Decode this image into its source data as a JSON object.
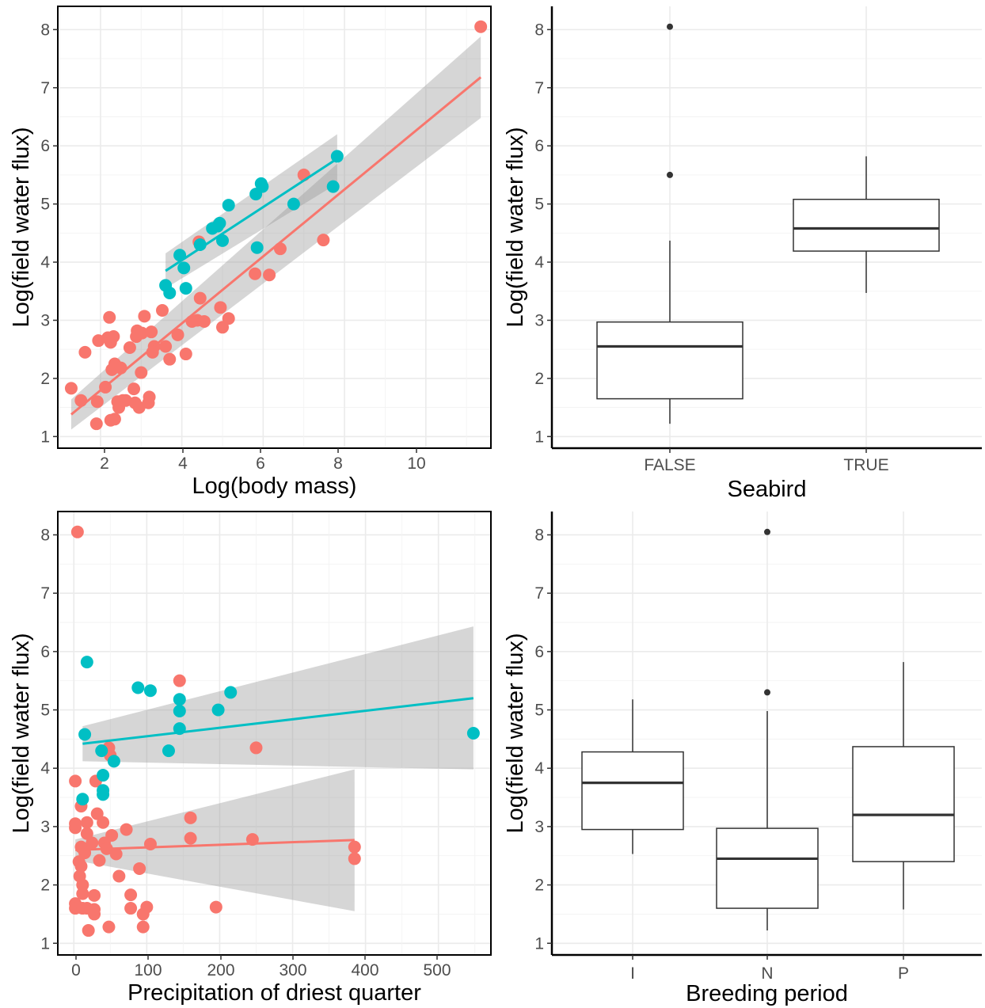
{
  "chart_data": [
    {
      "type": "scatter",
      "xlabel": "Log(body mass)",
      "ylabel": "Log(field water flux)",
      "xlim": [
        0.95,
        11.6
      ],
      "ylim": [
        0.8,
        8.4
      ],
      "xticks": [
        "2",
        "4",
        "6",
        "8",
        "10"
      ],
      "yticks": [
        "1",
        "2",
        "3",
        "4",
        "5",
        "6",
        "7",
        "8"
      ],
      "grid": true,
      "legend": "none",
      "series": [
        {
          "color": "#F8766D",
          "points": [
            [
              1.28,
              1.83
            ],
            [
              1.52,
              1.62
            ],
            [
              1.62,
              2.45
            ],
            [
              1.9,
              1.22
            ],
            [
              1.92,
              1.6
            ],
            [
              1.95,
              2.65
            ],
            [
              2.12,
              1.85
            ],
            [
              2.18,
              2.7
            ],
            [
              2.22,
              3.05
            ],
            [
              2.25,
              2.62
            ],
            [
              2.25,
              1.28
            ],
            [
              2.28,
              2.15
            ],
            [
              2.32,
              2.72
            ],
            [
              2.35,
              1.3
            ],
            [
              2.35,
              2.25
            ],
            [
              2.42,
              1.6
            ],
            [
              2.45,
              1.5
            ],
            [
              2.5,
              2.18
            ],
            [
              2.55,
              1.62
            ],
            [
              2.62,
              1.62
            ],
            [
              2.72,
              2.53
            ],
            [
              2.82,
              1.82
            ],
            [
              2.85,
              1.58
            ],
            [
              2.88,
              2.72
            ],
            [
              2.9,
              2.82
            ],
            [
              2.95,
              1.5
            ],
            [
              3.0,
              2.1
            ],
            [
              3.02,
              2.78
            ],
            [
              3.08,
              3.07
            ],
            [
              3.18,
              1.58
            ],
            [
              3.2,
              1.68
            ],
            [
              3.25,
              2.8
            ],
            [
              3.28,
              2.45
            ],
            [
              3.32,
              2.55
            ],
            [
              3.52,
              3.17
            ],
            [
              3.6,
              2.55
            ],
            [
              3.7,
              2.33
            ],
            [
              3.9,
              2.75
            ],
            [
              4.1,
              2.42
            ],
            [
              4.25,
              2.98
            ],
            [
              4.38,
              3.0
            ],
            [
              4.45,
              3.38
            ],
            [
              4.55,
              2.98
            ],
            [
              4.42,
              4.35
            ],
            [
              4.95,
              3.22
            ],
            [
              5.0,
              2.88
            ],
            [
              5.15,
              3.03
            ],
            [
              5.8,
              3.8
            ],
            [
              6.15,
              3.78
            ],
            [
              6.42,
              4.23
            ],
            [
              7.0,
              5.5
            ],
            [
              7.48,
              4.38
            ],
            [
              11.35,
              8.05
            ]
          ],
          "fit": {
            "x": [
              1.28,
              11.35
            ],
            "y": [
              1.38,
              7.18
            ],
            "ci_low": [
              1.12,
              6.48
            ],
            "ci_high": [
              1.64,
              7.88
            ]
          }
        },
        {
          "color": "#00BFC4",
          "points": [
            [
              3.6,
              3.6
            ],
            [
              3.7,
              3.47
            ],
            [
              3.95,
              4.12
            ],
            [
              4.05,
              3.9
            ],
            [
              4.1,
              3.55
            ],
            [
              4.45,
              4.3
            ],
            [
              4.75,
              4.58
            ],
            [
              4.88,
              4.62
            ],
            [
              4.93,
              4.67
            ],
            [
              5.0,
              4.37
            ],
            [
              5.15,
              4.98
            ],
            [
              5.82,
              5.17
            ],
            [
              5.85,
              4.25
            ],
            [
              5.95,
              5.35
            ],
            [
              5.98,
              5.3
            ],
            [
              6.75,
              5.0
            ],
            [
              7.72,
              5.3
            ],
            [
              7.82,
              5.82
            ]
          ],
          "fit": {
            "x": [
              3.6,
              7.82
            ],
            "y": [
              3.85,
              5.78
            ],
            "ci_low": [
              3.55,
              5.35
            ],
            "ci_high": [
              4.15,
              6.2
            ]
          }
        }
      ]
    },
    {
      "type": "box",
      "xlabel": "Seabird",
      "ylabel": "Log(field water flux)",
      "categories": [
        "FALSE",
        "TRUE"
      ],
      "ylim": [
        0.8,
        8.4
      ],
      "yticks": [
        "1",
        "2",
        "3",
        "4",
        "5",
        "6",
        "7",
        "8"
      ],
      "grid": true,
      "boxes": [
        {
          "min": 1.22,
          "q1": 1.65,
          "median": 2.55,
          "q3": 2.97,
          "max": 4.37,
          "outliers": [
            5.5,
            8.05
          ]
        },
        {
          "min": 3.47,
          "q1": 4.19,
          "median": 4.58,
          "q3": 5.08,
          "max": 5.82,
          "outliers": []
        }
      ]
    },
    {
      "type": "scatter",
      "xlabel": "Precipitation of driest quarter",
      "ylabel": "Log(field water flux)",
      "xlim": [
        -22,
        572
      ],
      "ylim": [
        0.8,
        8.4
      ],
      "xticks": [
        "0",
        "100",
        "200",
        "300",
        "400",
        "500"
      ],
      "yticks": [
        "1",
        "2",
        "3",
        "4",
        "5",
        "6",
        "7",
        "8"
      ],
      "grid": true,
      "legend": "none",
      "series": [
        {
          "color": "#F8766D",
          "points": [
            [
              2,
              3.78
            ],
            [
              2,
              3.05
            ],
            [
              2,
              2.98
            ],
            [
              2,
              1.68
            ],
            [
              2,
              1.6
            ],
            [
              5,
              8.05
            ],
            [
              7,
              2.4
            ],
            [
              8,
              2.15
            ],
            [
              10,
              2.65
            ],
            [
              10,
              3.35
            ],
            [
              10,
              2.32
            ],
            [
              12,
              1.85
            ],
            [
              12,
              1.6
            ],
            [
              12,
              2.0
            ],
            [
              15,
              2.55
            ],
            [
              18,
              1.6
            ],
            [
              18,
              2.88
            ],
            [
              18,
              3.07
            ],
            [
              20,
              1.22
            ],
            [
              25,
              2.72
            ],
            [
              28,
              1.82
            ],
            [
              28,
              1.5
            ],
            [
              28,
              1.58
            ],
            [
              30,
              3.78
            ],
            [
              32,
              3.22
            ],
            [
              35,
              2.42
            ],
            [
              40,
              3.07
            ],
            [
              42,
              2.72
            ],
            [
              45,
              2.62
            ],
            [
              48,
              4.35
            ],
            [
              48,
              1.28
            ],
            [
              50,
              4.22
            ],
            [
              52,
              2.85
            ],
            [
              58,
              2.53
            ],
            [
              62,
              2.15
            ],
            [
              72,
              2.95
            ],
            [
              78,
              1.83
            ],
            [
              78,
              1.6
            ],
            [
              90,
              2.28
            ],
            [
              95,
              1.28
            ],
            [
              95,
              1.5
            ],
            [
              100,
              1.62
            ],
            [
              105,
              2.7
            ],
            [
              145,
              5.5
            ],
            [
              160,
              3.15
            ],
            [
              160,
              2.8
            ],
            [
              195,
              1.62
            ],
            [
              245,
              2.78
            ],
            [
              250,
              4.35
            ],
            [
              385,
              2.65
            ],
            [
              385,
              2.45
            ]
          ],
          "fit": {
            "x": [
              2,
              385
            ],
            "y": [
              2.6,
              2.77
            ],
            "ci_low": [
              2.42,
              1.55
            ],
            "ci_high": [
              2.78,
              3.98
            ]
          }
        },
        {
          "color": "#00BFC4",
          "points": [
            [
              12,
              3.47
            ],
            [
              15,
              4.58
            ],
            [
              18,
              5.82
            ],
            [
              38,
              4.3
            ],
            [
              40,
              3.88
            ],
            [
              40,
              3.55
            ],
            [
              40,
              3.62
            ],
            [
              55,
              4.12
            ],
            [
              88,
              5.38
            ],
            [
              105,
              5.33
            ],
            [
              130,
              4.3
            ],
            [
              145,
              5.18
            ],
            [
              145,
              4.98
            ],
            [
              145,
              4.68
            ],
            [
              198,
              5.0
            ],
            [
              215,
              5.3
            ],
            [
              548,
              4.6
            ]
          ],
          "fit": {
            "x": [
              12,
              548
            ],
            "y": [
              4.42,
              5.2
            ],
            "ci_low": [
              4.12,
              3.98
            ],
            "ci_high": [
              4.72,
              6.43
            ]
          }
        }
      ]
    },
    {
      "type": "box",
      "xlabel": "Breeding period",
      "ylabel": "Log(field water flux)",
      "categories": [
        "I",
        "N",
        "P"
      ],
      "ylim": [
        0.8,
        8.4
      ],
      "yticks": [
        "1",
        "2",
        "3",
        "4",
        "5",
        "6",
        "7",
        "8"
      ],
      "grid": true,
      "boxes": [
        {
          "min": 2.53,
          "q1": 2.95,
          "median": 3.75,
          "q3": 4.28,
          "max": 5.18,
          "outliers": []
        },
        {
          "min": 1.22,
          "q1": 1.6,
          "median": 2.45,
          "q3": 2.97,
          "max": 4.98,
          "outliers": [
            5.3,
            8.05
          ]
        },
        {
          "min": 1.58,
          "q1": 2.4,
          "median": 3.2,
          "q3": 4.37,
          "max": 5.82,
          "outliers": []
        }
      ]
    }
  ]
}
